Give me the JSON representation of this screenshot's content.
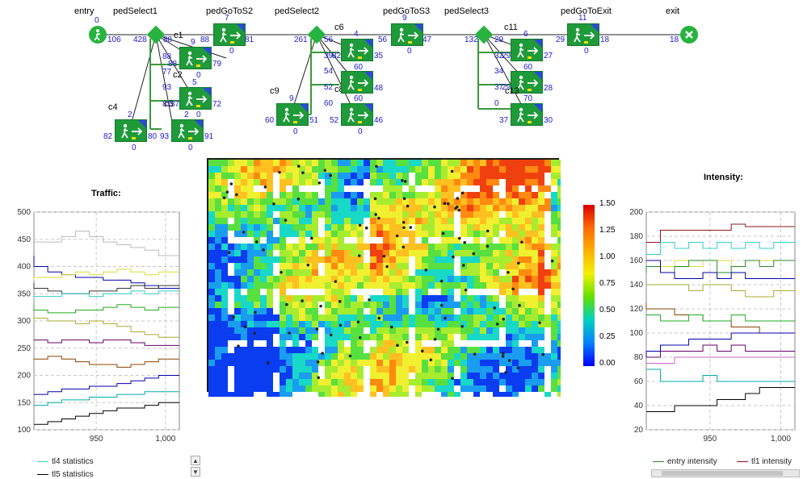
{
  "flow": {
    "labels": {
      "entry": "entry",
      "pedSelect1": "pedSelect1",
      "pedGoToS2": "pedGoToS2",
      "pedSelect2": "pedSelect2",
      "pedGoToS3": "pedGoToS3",
      "pedSelect3": "pedSelect3",
      "pedGoToExit": "pedGoToExit",
      "exit": "exit",
      "c1": "c1",
      "c2": "c2",
      "c3": "c3",
      "c4": "c4",
      "c6": "c6",
      "c8": "c8",
      "c9": "c9",
      "c11": "c11",
      "c13": "c13"
    },
    "counts": {
      "entry_top": "0",
      "entry_left": "106",
      "sel1_in": "428",
      "sel1_c1": "88",
      "c1_top": "9",
      "c1_left": "88",
      "c1_in": "88",
      "c1_right": "79",
      "c1_bottom": "0",
      "gos2_top": "7",
      "gos2_left": "88",
      "gos2_right": "81",
      "gos2_bottom": "0",
      "c2_a": "77",
      "c2_b": "93",
      "c2_top": "5",
      "c2_right": "72",
      "c2_left": "87",
      "c2_c": "37",
      "c2_bottom": "2",
      "c2_bottom2": "0",
      "c3_right": "91",
      "c3_left": "93",
      "c4_top": "2",
      "c4_left": "82",
      "c4_right": "80",
      "c4_bottom": "0",
      "sel2_in": "261",
      "sel2_out": "56",
      "c6_top": "4",
      "c6_a": "39",
      "c6_b": "82",
      "c6_right": "35",
      "c6_c": "60",
      "c6_bottom": "0",
      "c8_a": "54",
      "c8_b": "52",
      "c8_c": "60",
      "c8_right": "48",
      "c8_d": "54",
      "c8_e": "60",
      "c9_top": "9",
      "c9_left": "60",
      "c9_right": "51",
      "c9_bottom": "0",
      "c10_left": "52",
      "c10_right": "46",
      "c10_bottom": "0",
      "gos3_top": "9",
      "gos3_left": "56",
      "gos3_right": "47",
      "gos3_bottom": "0",
      "sel3_in": "132",
      "sel3_out": "29",
      "c11_top": "6",
      "c11_a": "32",
      "c11_b": "29",
      "c11_right": "27",
      "c11_c": "60",
      "c11_bottom": "0",
      "c12_a": "34",
      "c12_b": "37",
      "c12_c": "29",
      "c12_right": "28",
      "c12_d": "70",
      "c13_left": "37",
      "c13_right": "30",
      "c13_bottom": "0",
      "goexit_top": "11",
      "goexit_left": "29",
      "goexit_right": "18",
      "goexit_bottom": "0",
      "exit_left": "18"
    }
  },
  "traffic_chart": {
    "title": "Traffic:",
    "legend": [
      {
        "name": "tl4 statistics",
        "color": "#33cccc"
      },
      {
        "name": "tl5 statistics",
        "color": "#000000"
      }
    ]
  },
  "intensity_chart": {
    "title": "Intensity:",
    "legend": [
      {
        "name": "entry intensity",
        "color": "#2a8a2a"
      },
      {
        "name": "tl1 intensity",
        "color": "#8a1a1a"
      }
    ]
  },
  "colorbar": {
    "labels": [
      "1.50",
      "1.25",
      "1.00",
      "0.75",
      "0.50",
      "0.25",
      "0.00"
    ]
  },
  "chart_data": [
    {
      "type": "line",
      "title": "Traffic:",
      "xlabel": "",
      "ylabel": "",
      "xlim": [
        905,
        1010
      ],
      "ylim": [
        100,
        500
      ],
      "xticks": [
        "950",
        "1,000"
      ],
      "yticks": [
        "100",
        "150",
        "200",
        "250",
        "300",
        "350",
        "400",
        "450",
        "500"
      ],
      "grid": true,
      "x": [
        905,
        915,
        925,
        935,
        945,
        955,
        965,
        975,
        985,
        995,
        1005
      ],
      "series": [
        {
          "name": "",
          "color": "#bbbbbb",
          "values": [
            445,
            445,
            445,
            455,
            465,
            455,
            445,
            440,
            435,
            430,
            420
          ]
        },
        {
          "name": "",
          "color": "#0000aa",
          "values": [
            420,
            400,
            390,
            385,
            380,
            380,
            375,
            375,
            370,
            365,
            360
          ]
        },
        {
          "name": "",
          "color": "#dddd33",
          "values": [
            375,
            380,
            380,
            385,
            390,
            385,
            390,
            395,
            390,
            385,
            390
          ]
        },
        {
          "name": "",
          "color": "#333333",
          "values": [
            370,
            360,
            355,
            350,
            350,
            355,
            355,
            360,
            365,
            360,
            365
          ]
        },
        {
          "name": "tl4 statistics",
          "color": "#33cccc",
          "values": [
            340,
            345,
            345,
            350,
            350,
            345,
            350,
            350,
            355,
            350,
            355
          ]
        },
        {
          "name": "",
          "color": "#22aa22",
          "values": [
            330,
            320,
            315,
            315,
            320,
            320,
            325,
            330,
            325,
            320,
            325
          ]
        },
        {
          "name": "",
          "color": "#aaaa33",
          "values": [
            300,
            305,
            300,
            300,
            295,
            300,
            295,
            290,
            280,
            275,
            270
          ]
        },
        {
          "name": "",
          "color": "#660066",
          "values": [
            265,
            265,
            260,
            265,
            265,
            260,
            265,
            265,
            260,
            255,
            255
          ]
        },
        {
          "name": "",
          "color": "#884400",
          "values": [
            230,
            230,
            235,
            230,
            225,
            220,
            220,
            215,
            220,
            225,
            230
          ]
        },
        {
          "name": "",
          "color": "#0000aa",
          "values": [
            165,
            165,
            170,
            175,
            175,
            180,
            180,
            185,
            190,
            195,
            200
          ]
        },
        {
          "name": "",
          "color": "#00aaaa",
          "values": [
            145,
            145,
            150,
            155,
            155,
            160,
            160,
            165,
            165,
            170,
            170
          ]
        },
        {
          "name": "tl5 statistics",
          "color": "#000000",
          "values": [
            110,
            110,
            115,
            120,
            125,
            130,
            135,
            140,
            140,
            145,
            150
          ]
        }
      ]
    },
    {
      "type": "line",
      "title": "Intensity:",
      "xlabel": "",
      "ylabel": "",
      "xlim": [
        905,
        1010
      ],
      "ylim": [
        20,
        200
      ],
      "xticks": [
        "950",
        "1,000"
      ],
      "yticks": [
        "20",
        "40",
        "60",
        "80",
        "100",
        "120",
        "140",
        "160",
        "180",
        "200"
      ],
      "grid": true,
      "x": [
        905,
        915,
        925,
        935,
        945,
        955,
        965,
        975,
        985,
        995,
        1005
      ],
      "series": [
        {
          "name": "tl1 intensity",
          "color": "#8a1a1a",
          "values": [
            175,
            175,
            185,
            185,
            185,
            185,
            185,
            190,
            188,
            188,
            188
          ]
        },
        {
          "name": "",
          "color": "#33cccc",
          "values": [
            165,
            165,
            175,
            170,
            175,
            170,
            175,
            170,
            175,
            170,
            175
          ]
        },
        {
          "name": "",
          "color": "#dddd33",
          "values": [
            160,
            160,
            155,
            160,
            155,
            160,
            160,
            155,
            160,
            160,
            160
          ]
        },
        {
          "name": "entry intensity",
          "color": "#2a8a2a",
          "values": [
            150,
            155,
            150,
            155,
            160,
            160,
            150,
            155,
            160,
            155,
            160
          ]
        },
        {
          "name": "",
          "color": "#0000aa",
          "values": [
            160,
            160,
            150,
            145,
            145,
            150,
            145,
            150,
            145,
            145,
            145
          ]
        },
        {
          "name": "",
          "color": "#aaaa33",
          "values": [
            140,
            140,
            140,
            140,
            135,
            140,
            140,
            135,
            130,
            130,
            135
          ]
        },
        {
          "name": "",
          "color": "#884400",
          "values": [
            125,
            120,
            120,
            115,
            115,
            110,
            110,
            105,
            105,
            100,
            100
          ]
        },
        {
          "name": "",
          "color": "#22aa22",
          "values": [
            115,
            115,
            110,
            110,
            115,
            110,
            110,
            115,
            110,
            110,
            110
          ]
        },
        {
          "name": "",
          "color": "#0000aa",
          "values": [
            80,
            85,
            90,
            90,
            95,
            95,
            95,
            100,
            100,
            100,
            100
          ]
        },
        {
          "name": "",
          "color": "#660066",
          "values": [
            80,
            80,
            85,
            85,
            85,
            90,
            85,
            90,
            85,
            85,
            85
          ]
        },
        {
          "name": "",
          "color": "#cc66cc",
          "values": [
            75,
            75,
            75,
            80,
            80,
            80,
            80,
            80,
            80,
            80,
            80
          ]
        },
        {
          "name": "",
          "color": "#00aaaa",
          "values": [
            70,
            70,
            60,
            60,
            60,
            65,
            60,
            60,
            60,
            60,
            60
          ]
        },
        {
          "name": "",
          "color": "#000000",
          "values": [
            35,
            35,
            35,
            40,
            40,
            40,
            45,
            45,
            50,
            55,
            55
          ]
        }
      ]
    }
  ]
}
